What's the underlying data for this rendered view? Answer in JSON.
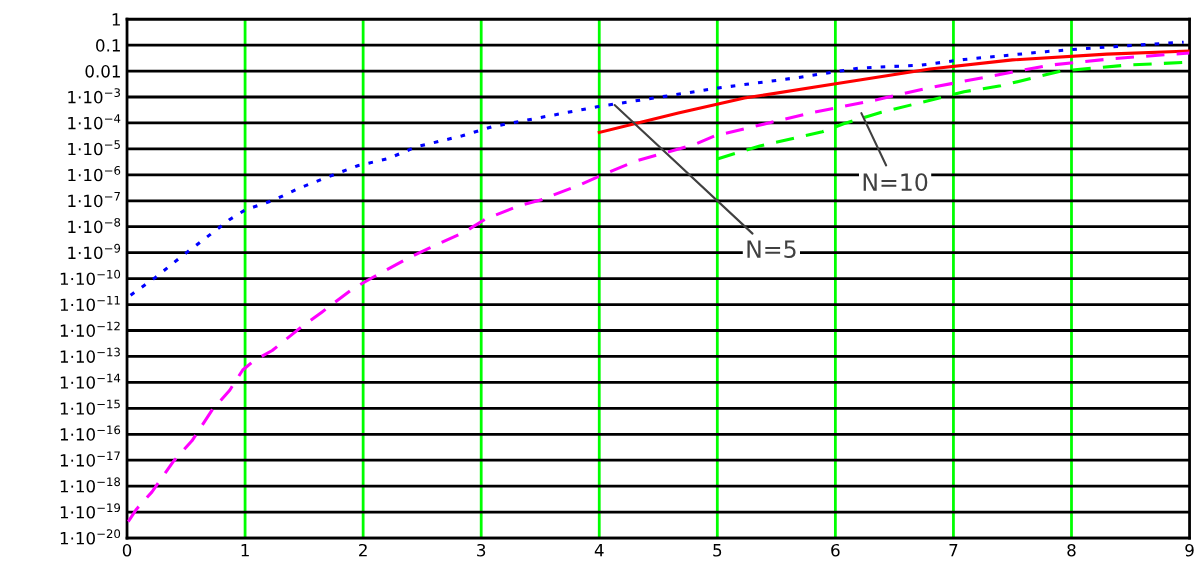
{
  "chart_data": {
    "type": "line",
    "log": "y",
    "grid": true,
    "legend": false,
    "marker": "none",
    "xlim": [
      0,
      9
    ],
    "xticks": [
      0,
      1,
      2,
      3,
      4,
      5,
      6,
      7,
      8,
      9
    ],
    "ylim": [
      1e-20,
      1
    ],
    "yticks": [
      1,
      0.1,
      0.01,
      {
        "value": 0.001,
        "label": "1·10$^{−3}$"
      },
      {
        "value": 0.0001,
        "label": "1·10$^{−4}$"
      },
      {
        "value": 1e-05,
        "label": "1·10$^{−5}$"
      },
      {
        "value": 1e-06,
        "label": "1·10$^{−6}$"
      },
      {
        "value": 1e-07,
        "label": "1·10$^{−7}$"
      },
      {
        "value": 1e-08,
        "label": "1·10$^{−8}$"
      },
      {
        "value": 1e-09,
        "label": "1·10$^{−9}$"
      },
      {
        "value": 1e-10,
        "label": "1·10$^{−10}$"
      },
      {
        "value": 1e-11,
        "label": "1·10$^{−11}$"
      },
      {
        "value": 1e-12,
        "label": "1·10$^{−12}$"
      },
      {
        "value": 1e-13,
        "label": "1·10$^{−13}$"
      },
      {
        "value": 1e-14,
        "label": "1·10$^{−14}$"
      },
      {
        "value": 1e-15,
        "label": "1·10$^{−15}$"
      },
      {
        "value": 1e-16,
        "label": "1·10$^{−16}$"
      },
      {
        "value": 1e-17,
        "label": "1·10$^{−17}$"
      },
      {
        "value": 1e-18,
        "label": "1·10$^{−18}$"
      },
      {
        "value": 1e-19,
        "label": "1·10$^{−19}$"
      },
      {
        "value": 1e-20,
        "label": "1·10$^{−20}$"
      }
    ],
    "series": [
      {
        "color": "#0000ff",
        "line_style": "dotted",
        "x": [
          0.03,
          0.24,
          0.45,
          0.66,
          0.87,
          1.0,
          1.25,
          1.46,
          1.72,
          1.96,
          2.21,
          2.45,
          2.84,
          3.09,
          3.35,
          3.72,
          3.98,
          4.35,
          5.0,
          5.68,
          6.2,
          6.73,
          7.09,
          7.78,
          8.16,
          8.82,
          8.95
        ],
        "values": [
          2.3e-11,
          1.1e-10,
          6.5e-10,
          3.5e-09,
          1.9e-08,
          4.4e-08,
          1.1e-07,
          3.1e-07,
          8.9e-07,
          2.3e-06,
          4.2e-06,
          1.2e-05,
          3.2e-05,
          7.1e-05,
          0.00012,
          0.00025,
          0.00042,
          0.00076,
          0.0022,
          0.0056,
          0.013,
          0.017,
          0.028,
          0.056,
          0.076,
          0.12,
          0.13
        ]
      },
      {
        "color": "#ff0000",
        "line_style": "solid",
        "x": [
          4.0,
          4.67,
          5.23,
          6.07,
          6.8,
          7.5,
          8.3,
          9.0
        ],
        "values": [
          4.3e-05,
          0.00024,
          0.00091,
          0.0036,
          0.012,
          0.027,
          0.045,
          0.059
        ]
      },
      {
        "color": "#ff00ff",
        "line_style": "dashed",
        "x": [
          0.01,
          0.08,
          0.21,
          0.39,
          0.55,
          0.72,
          0.87,
          0.98,
          1.07,
          1.23,
          1.48,
          1.65,
          1.91,
          2.08,
          2.4,
          2.56,
          2.86,
          3.03,
          3.31,
          3.51,
          3.84,
          4.0,
          4.31,
          4.81,
          4.98,
          5.82,
          6.35,
          6.78,
          7.36,
          7.82,
          8.35,
          9.0
        ],
        "values": [
          4.3e-20,
          1.3e-19,
          5.9e-19,
          8.7e-18,
          5.6e-17,
          8.5e-16,
          5e-15,
          3e-14,
          6.6e-14,
          1.7e-13,
          1.4e-12,
          5.1e-12,
          4e-11,
          1.1e-10,
          6.8e-10,
          1.5e-09,
          6.3e-09,
          1.9e-08,
          6.2e-08,
          1.1e-07,
          4.2e-07,
          8.9e-07,
          3.4e-06,
          1.5e-05,
          3.2e-05,
          0.00026,
          0.00078,
          0.0022,
          0.0069,
          0.017,
          0.03,
          0.05
        ]
      },
      {
        "color": "#00ff00",
        "line_style": "dashed",
        "x": [
          5.0,
          5.36,
          5.89,
          6.07,
          6.39,
          6.88,
          7.09,
          7.4,
          7.91,
          8.47,
          9.0
        ],
        "values": [
          4.1e-06,
          1.3e-05,
          4.6e-05,
          9.3e-05,
          0.00026,
          0.00091,
          0.0016,
          0.0027,
          0.01,
          0.017,
          0.022
        ]
      }
    ],
    "annotations": [
      {
        "text": "N=5",
        "x": 4.13,
        "y": 0.00049
      },
      {
        "text": "N=10",
        "x": 6.22,
        "y": 0.00024
      }
    ]
  }
}
